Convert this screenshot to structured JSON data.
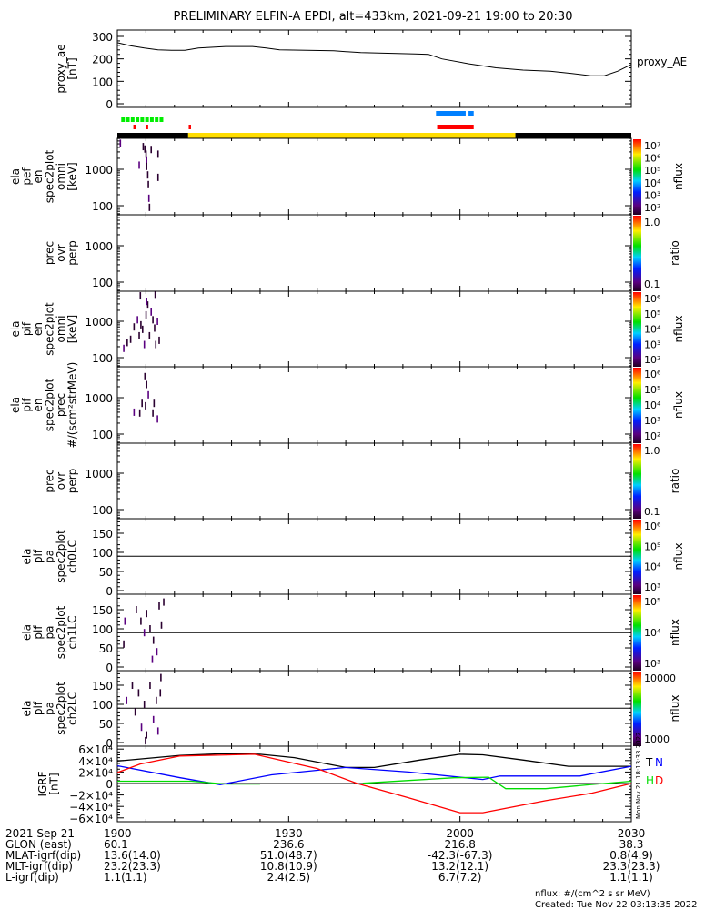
{
  "title": "PRELIMINARY ELFIN-A EPDI, alt=433km, 2021-09-21 19:00 to 20:30",
  "chart_data": [
    {
      "type": "line",
      "name": "proxy_ae",
      "ylabel_lines": [
        "proxy_ae",
        "[nT]"
      ],
      "legend": "proxy_AE",
      "ylim": [
        0,
        300
      ],
      "yticks": [
        "0",
        "100",
        "200",
        "300"
      ],
      "xunit": "minutes after 19:00",
      "x": [
        0,
        5,
        10,
        15,
        20,
        25,
        30,
        40,
        50,
        55,
        60,
        80,
        90,
        110,
        115,
        120,
        130,
        140,
        150,
        160,
        168,
        175,
        180,
        185,
        190
      ],
      "values": [
        272,
        258,
        248,
        240,
        238,
        238,
        248,
        255,
        255,
        248,
        240,
        236,
        228,
        222,
        220,
        200,
        178,
        160,
        150,
        145,
        135,
        125,
        125,
        145,
        175
      ]
    },
    {
      "type": "bars",
      "name": "orbit-indicator-bars",
      "segments": [
        {
          "color": "#00ee00",
          "kind": "dashes",
          "from": 1,
          "to": 9
        },
        {
          "color": "#ff0000",
          "kind": "ticks",
          "at": [
            2.8,
            5.0,
            12.5
          ]
        },
        {
          "color": "#ff0000",
          "kind": "bar",
          "from": 56.0,
          "to": 62.4
        },
        {
          "color": "#0080ff",
          "kind": "bar",
          "from": 55.8,
          "to": 61.0
        },
        {
          "color": "#0080ff",
          "kind": "bar",
          "from": 61.5,
          "to": 62.4
        },
        {
          "color": "#000000",
          "kind": "band",
          "from": 0,
          "to": 12.4
        },
        {
          "color": "#ffdd00",
          "kind": "band",
          "from": 12.4,
          "to": 69.7
        },
        {
          "color": "#000000",
          "kind": "band",
          "from": 69.7,
          "to": 90
        }
      ]
    },
    {
      "type": "heatmap",
      "name": "ela-pef-en-spec2plot-omni",
      "ylabel_lines": [
        "ela",
        "pef",
        "en",
        "spec2plot",
        "omni",
        "[keV]"
      ],
      "yscale": "log",
      "yticks": [
        "100",
        "1000"
      ],
      "colorbar": {
        "label": "nflux",
        "ticks": [
          "10⁷",
          "10⁶",
          "10⁵",
          "10⁴",
          "10³",
          "10²"
        ]
      },
      "points": [
        [
          0.4,
          5200
        ],
        [
          4.4,
          4200
        ],
        [
          4.7,
          3600
        ],
        [
          4.9,
          2600
        ],
        [
          5.0,
          1800
        ],
        [
          5.0,
          1200
        ],
        [
          5.2,
          700
        ],
        [
          5.3,
          380
        ],
        [
          5.4,
          160
        ],
        [
          5.5,
          90
        ],
        [
          7.0,
          2600
        ],
        [
          7.0,
          600
        ],
        [
          3.7,
          1300
        ],
        [
          5.8,
          3500
        ]
      ]
    },
    {
      "type": "heatmap",
      "name": "prec-ovr-perp-electrons",
      "ylabel_lines": [
        "prec",
        "ovr",
        "perp"
      ],
      "yscale": "log",
      "yticks": [
        "100",
        "1000"
      ],
      "colorbar": {
        "label": "ratio",
        "ticks": [
          "1.0",
          "0.1"
        ]
      },
      "points": []
    },
    {
      "type": "heatmap",
      "name": "ela-pif-en-spec2plot-omni",
      "ylabel_lines": [
        "ela",
        "pif",
        "en",
        "spec2plot",
        "omni",
        "[keV]"
      ],
      "yscale": "log",
      "yticks": [
        "100",
        "1000"
      ],
      "colorbar": {
        "label": "nflux",
        "ticks": [
          "10⁶",
          "10⁵",
          "10⁴",
          "10³",
          "10²"
        ]
      },
      "points": [
        [
          1.0,
          180
        ],
        [
          1.6,
          260
        ],
        [
          2.2,
          320
        ],
        [
          2.8,
          700
        ],
        [
          3.4,
          1100
        ],
        [
          3.7,
          400
        ],
        [
          4.0,
          800
        ],
        [
          4.3,
          600
        ],
        [
          4.6,
          230
        ],
        [
          4.9,
          1500
        ],
        [
          5.2,
          2800
        ],
        [
          5.5,
          400
        ],
        [
          5.8,
          1800
        ],
        [
          6.1,
          1100
        ],
        [
          6.4,
          650
        ],
        [
          6.6,
          230
        ],
        [
          6.9,
          1000
        ],
        [
          7.2,
          300
        ],
        [
          3.9,
          5000
        ],
        [
          6.5,
          5200
        ],
        [
          5.0,
          3500
        ]
      ]
    },
    {
      "type": "heatmap",
      "name": "ela-pif-en-spec2plot-prec",
      "ylabel_lines": [
        "ela",
        "pif",
        "en",
        "spec2plot",
        "prec",
        "#/(scm²strMeV)"
      ],
      "yscale": "log",
      "yticks": [
        "100",
        "1000"
      ],
      "colorbar": {
        "label": "nflux",
        "ticks": [
          "10⁶",
          "10⁵",
          "10⁴",
          "10³",
          "10²"
        ]
      },
      "points": [
        [
          2.8,
          400
        ],
        [
          3.8,
          380
        ],
        [
          4.2,
          700
        ],
        [
          4.8,
          600
        ],
        [
          5.3,
          1200
        ],
        [
          6.3,
          700
        ],
        [
          5.0,
          2300
        ],
        [
          6.1,
          380
        ],
        [
          6.9,
          260
        ],
        [
          4.7,
          3800
        ]
      ]
    },
    {
      "type": "heatmap",
      "name": "prec-ovr-perp-ions",
      "ylabel_lines": [
        "prec",
        "ovr",
        "perp"
      ],
      "yscale": "log",
      "yticks": [
        "100",
        "1000"
      ],
      "colorbar": {
        "label": "ratio",
        "ticks": [
          "1.0",
          "0.1"
        ]
      },
      "points": []
    },
    {
      "type": "heatmap",
      "name": "ela-pif-pa-spec2plot-ch0LC",
      "ylabel_lines": [
        "ela",
        "pif",
        "pa",
        "spec2plot",
        "ch0LC"
      ],
      "ylim": [
        0,
        180
      ],
      "yticks": [
        "0",
        "50",
        "100",
        "150"
      ],
      "colorbar": {
        "label": "nflux",
        "ticks": [
          "10⁶",
          "10⁵",
          "10⁴",
          "10³"
        ]
      },
      "points": []
    },
    {
      "type": "heatmap",
      "name": "ela-pif-pa-spec2plot-ch1LC",
      "ylabel_lines": [
        "ela",
        "pif",
        "pa",
        "spec2plot",
        "ch1LC"
      ],
      "ylim": [
        0,
        180
      ],
      "yticks": [
        "0",
        "50",
        "100",
        "150"
      ],
      "colorbar": {
        "label": "nflux",
        "ticks": [
          "10⁵",
          "10⁴",
          "10³"
        ]
      },
      "points": [
        [
          1.2,
          120
        ],
        [
          1.0,
          60
        ],
        [
          3.2,
          150
        ],
        [
          4.0,
          120
        ],
        [
          4.6,
          90
        ],
        [
          5.0,
          140
        ],
        [
          5.6,
          100
        ],
        [
          6.2,
          70
        ],
        [
          6.8,
          40
        ],
        [
          7.2,
          160
        ],
        [
          7.6,
          110
        ],
        [
          8.0,
          170
        ],
        [
          6.0,
          20
        ]
      ]
    },
    {
      "type": "heatmap",
      "name": "ela-pif-pa-spec2plot-ch2LC",
      "ylabel_lines": [
        "ela",
        "pif",
        "pa",
        "spec2plot",
        "ch2LC"
      ],
      "ylim": [
        0,
        180
      ],
      "yticks": [
        "0",
        "50",
        "100",
        "150"
      ],
      "colorbar": {
        "label": "nflux",
        "ticks": [
          "10000",
          "1000"
        ]
      },
      "points": [
        [
          1.5,
          110
        ],
        [
          2.5,
          150
        ],
        [
          3.0,
          80
        ],
        [
          3.6,
          130
        ],
        [
          4.1,
          40
        ],
        [
          4.6,
          100
        ],
        [
          5.0,
          20
        ],
        [
          5.6,
          150
        ],
        [
          6.2,
          60
        ],
        [
          6.7,
          110
        ],
        [
          7.4,
          130
        ],
        [
          4.8,
          5
        ],
        [
          7.0,
          30
        ],
        [
          7.5,
          170
        ]
      ]
    },
    {
      "type": "line",
      "name": "igrf",
      "ylabel_lines": [
        "IGRF",
        "[nT]"
      ],
      "ylim": [
        -60000,
        60000
      ],
      "yticks": [
        "6×10⁴",
        "4×10⁴",
        "2×10⁴",
        "0",
        "−2×10⁴",
        "−4×10⁴",
        "−6×10⁴"
      ],
      "series": [
        {
          "name": "T",
          "color": "#000000",
          "x": [
            0,
            11,
            19,
            25,
            31,
            40,
            45,
            53,
            60,
            64,
            71,
            79,
            90
          ],
          "values": [
            39000,
            49000,
            52000,
            51000,
            45000,
            28000,
            28000,
            41000,
            51000,
            50000,
            41000,
            30000,
            30000
          ]
        },
        {
          "name": "N",
          "color": "#0000ff",
          "x": [
            0,
            11,
            18,
            27,
            40,
            51,
            64,
            67,
            81,
            90
          ],
          "values": [
            31000,
            10000,
            -2000,
            15000,
            28000,
            20000,
            7000,
            13000,
            13000,
            30000
          ]
        },
        {
          "name": "H",
          "color": "#00dd00",
          "x": [
            0,
            13,
            19,
            25
          ],
          "values": [
            4000,
            4000,
            -1000,
            -1000
          ]
        },
        {
          "name": "H2",
          "color": "#00dd00",
          "x": [
            43,
            59,
            65,
            68,
            75,
            84,
            90
          ],
          "values": [
            500,
            10000,
            11000,
            -9000,
            -9000,
            -1000,
            4000
          ]
        },
        {
          "name": "D",
          "color": "#ff0000",
          "x": [
            0,
            4,
            11,
            24,
            35,
            42,
            51,
            60,
            64,
            75,
            83,
            90
          ],
          "values": [
            19000,
            34000,
            48000,
            51000,
            26000,
            0,
            -25000,
            -51000,
            -51000,
            -30000,
            -17000,
            0
          ]
        }
      ]
    }
  ],
  "time_axis": {
    "row_labels": [
      "2021 Sep 21",
      "GLON (east)",
      "MLAT-igrf(dip)",
      "MLT-igrf(dip)",
      "L-igrf(dip)"
    ],
    "columns": [
      {
        "time": "1900",
        "glon": "60.1",
        "mlat": "13.6(14.0)",
        "mlt": "23.2(23.3)",
        "l": "1.1(1.1)"
      },
      {
        "time": "1930",
        "glon": "236.6",
        "mlat": "51.0(48.7)",
        "mlt": "10.8(10.9)",
        "l": "2.4(2.5)"
      },
      {
        "time": "2000",
        "glon": "216.8",
        "mlat": "-42.3(-67.3)",
        "mlt": "13.2(12.1)",
        "l": "6.7(7.2)"
      },
      {
        "time": "2030",
        "glon": "38.3",
        "mlat": "0.8(4.9)",
        "mlt": "23.3(23.3)",
        "l": "1.1(1.1)"
      }
    ]
  },
  "footer": {
    "units": "nflux: #/(cm^2 s sr MeV)",
    "created": "Created: Tue Nov 22 03:13:35 2022",
    "side_stamp": "Mon Nov 21 18:13:33 2022"
  }
}
